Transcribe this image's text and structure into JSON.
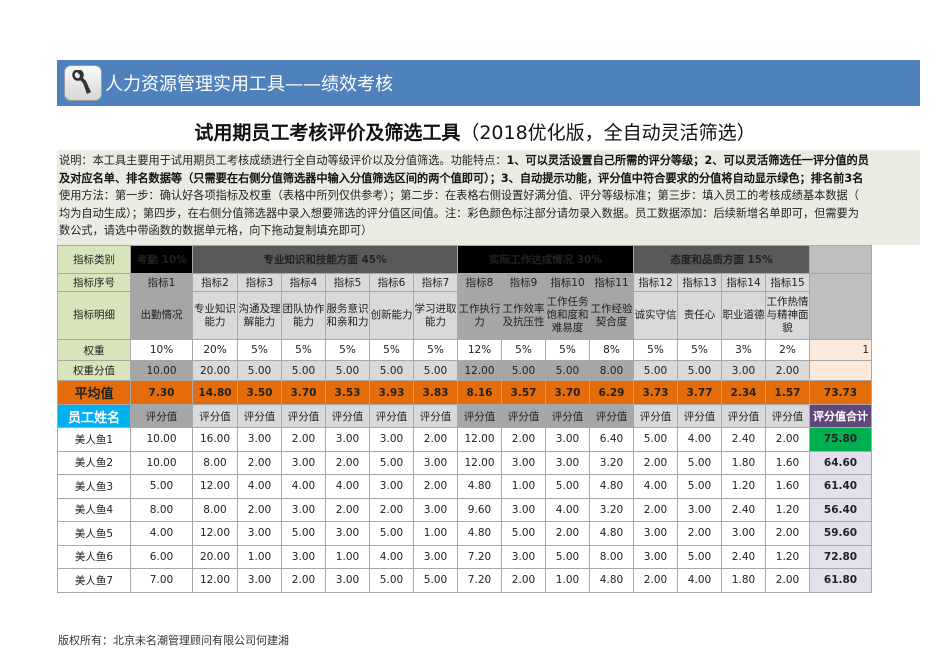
{
  "banner": {
    "icon": "wrench-icon",
    "title": "人力资源管理实用工具——绩效考核"
  },
  "main_title": {
    "bold": "试用期员工考核评价及筛选工具",
    "light": "（2018优化版，全自动灵活筛选）"
  },
  "description": {
    "line1_normal": "说明：本工具主要用于试用期员工考核成绩进行全自动等级评价以及分值筛选。功能特点：",
    "line1_bold": "1、可以灵活设置自己所需的评分等级；2、可以灵活筛选任一评分值的员",
    "line2_bold": "及对应名单、排名数据等（只需要在右侧分值筛选器中输入分值筛选区间的两个值即可）；3、自动提示功能，评分值中符合要求的分值将自动显示绿色；排名前3名",
    "line3": "使用方法：第一步：确认好各项指标及权重（表格中所列仅供参考）；第二步：在表格右侧设置好满分值、评分等级标准；第三步：填入员工的考核成绩基本数据（",
    "line4": "均为自动生成）；第四步，在右侧分值筛选器中录入想要筛选的评分值区间值。注：彩色颜色标注部分请勿录入数据。员工数据添加：后续新增名单即可，但需要为",
    "line5": "数公式，请选中带函数的数据单元格，向下拖动复制填充即可）"
  },
  "table": {
    "row_labels": {
      "category": "指标类别",
      "index": "指标序号",
      "detail": "指标明细",
      "weight": "权重",
      "weight_score": "权重分值",
      "average": "平均值",
      "employee_name": "员工姓名"
    },
    "categories": [
      {
        "label": "考勤  10%",
        "span": 1
      },
      {
        "label": "专业知识和技能方面 45%",
        "span": 6
      },
      {
        "label": "实际工作达成情况  30%",
        "span": 4
      },
      {
        "label": "态度和品质方面  15%",
        "span": 4
      }
    ],
    "indicators": [
      {
        "index": "指标1",
        "detail": "出勤情况",
        "weight": "10%",
        "weight_score": "10.00",
        "average": "7.30"
      },
      {
        "index": "指标2",
        "detail": "专业知识能力",
        "weight": "20%",
        "weight_score": "20.00",
        "average": "14.80"
      },
      {
        "index": "指标3",
        "detail": "沟通及理解能力",
        "weight": "5%",
        "weight_score": "5.00",
        "average": "3.50"
      },
      {
        "index": "指标4",
        "detail": "团队协作能力",
        "weight": "5%",
        "weight_score": "5.00",
        "average": "3.70"
      },
      {
        "index": "指标5",
        "detail": "服务意识和亲和力",
        "weight": "5%",
        "weight_score": "5.00",
        "average": "3.53"
      },
      {
        "index": "指标6",
        "detail": "创新能力",
        "weight": "5%",
        "weight_score": "5.00",
        "average": "3.93"
      },
      {
        "index": "指标7",
        "detail": "学习进取能力",
        "weight": "5%",
        "weight_score": "5.00",
        "average": "3.83"
      },
      {
        "index": "指标8",
        "detail": "工作执行力",
        "weight": "12%",
        "weight_score": "12.00",
        "average": "8.16"
      },
      {
        "index": "指标9",
        "detail": "工作效率及抗压性",
        "weight": "5%",
        "weight_score": "5.00",
        "average": "3.57"
      },
      {
        "index": "指标10",
        "detail": "工作任务饱和度和难易度",
        "weight": "5%",
        "weight_score": "5.00",
        "average": "3.70"
      },
      {
        "index": "指标11",
        "detail": "工作经验契合度",
        "weight": "8%",
        "weight_score": "8.00",
        "average": "6.29"
      },
      {
        "index": "指标12",
        "detail": "诚实守信",
        "weight": "5%",
        "weight_score": "5.00",
        "average": "3.73"
      },
      {
        "index": "指标13",
        "detail": "责任心",
        "weight": "5%",
        "weight_score": "5.00",
        "average": "3.77"
      },
      {
        "index": "指标14",
        "detail": "职业道德",
        "weight": "3%",
        "weight_score": "3.00",
        "average": "2.34"
      },
      {
        "index": "指标15",
        "detail": "工作热情与精神面貌",
        "weight": "2%",
        "weight_score": "2.00",
        "average": "1.57"
      }
    ],
    "weight_total_partial": "1",
    "average_total": "73.73",
    "score_header": "评分值",
    "total_header": "评分值合计",
    "employees": [
      {
        "name": "美人鱼1",
        "scores": [
          "10.00",
          "16.00",
          "3.00",
          "2.00",
          "3.00",
          "3.00",
          "2.00",
          "12.00",
          "2.00",
          "3.00",
          "6.40",
          "5.00",
          "4.00",
          "2.40",
          "2.00"
        ],
        "total": "75.80",
        "highlight": true
      },
      {
        "name": "美人鱼2",
        "scores": [
          "10.00",
          "8.00",
          "2.00",
          "3.00",
          "2.00",
          "5.00",
          "3.00",
          "12.00",
          "3.00",
          "3.00",
          "3.20",
          "2.00",
          "5.00",
          "1.80",
          "1.60"
        ],
        "total": "64.60",
        "highlight": false
      },
      {
        "name": "美人鱼3",
        "scores": [
          "5.00",
          "12.00",
          "4.00",
          "4.00",
          "4.00",
          "3.00",
          "2.00",
          "4.80",
          "1.00",
          "5.00",
          "4.80",
          "4.00",
          "5.00",
          "1.20",
          "1.60"
        ],
        "total": "61.40",
        "highlight": false
      },
      {
        "name": "美人鱼4",
        "scores": [
          "8.00",
          "8.00",
          "2.00",
          "3.00",
          "2.00",
          "2.00",
          "3.00",
          "9.60",
          "3.00",
          "4.00",
          "3.20",
          "2.00",
          "3.00",
          "2.40",
          "1.20"
        ],
        "total": "56.40",
        "highlight": false
      },
      {
        "name": "美人鱼5",
        "scores": [
          "4.00",
          "12.00",
          "3.00",
          "5.00",
          "3.00",
          "5.00",
          "1.00",
          "4.80",
          "5.00",
          "2.00",
          "4.80",
          "3.00",
          "2.00",
          "3.00",
          "2.00"
        ],
        "total": "59.60",
        "highlight": false
      },
      {
        "name": "美人鱼6",
        "scores": [
          "6.00",
          "20.00",
          "1.00",
          "3.00",
          "1.00",
          "4.00",
          "3.00",
          "7.20",
          "3.00",
          "5.00",
          "8.00",
          "3.00",
          "5.00",
          "2.40",
          "1.20"
        ],
        "total": "72.80",
        "highlight": false
      },
      {
        "name": "美人鱼7",
        "scores": [
          "7.00",
          "12.00",
          "3.00",
          "2.00",
          "3.00",
          "5.00",
          "5.00",
          "7.20",
          "2.00",
          "1.00",
          "4.80",
          "2.00",
          "4.00",
          "1.80",
          "2.00"
        ],
        "total": "61.80",
        "highlight": false
      }
    ]
  },
  "footer": {
    "copyright": "版权所有：北京未名潮管理顾问有限公司何建湘"
  },
  "colors": {
    "banner": "#4f81bd",
    "label_green": "#d8e4bc",
    "average_orange": "#e46c0a",
    "name_header_blue": "#00b0f0",
    "total_header_purple": "#60497a",
    "total_cell_lavender": "#e4dfec",
    "highlight_green": "#00b050"
  }
}
